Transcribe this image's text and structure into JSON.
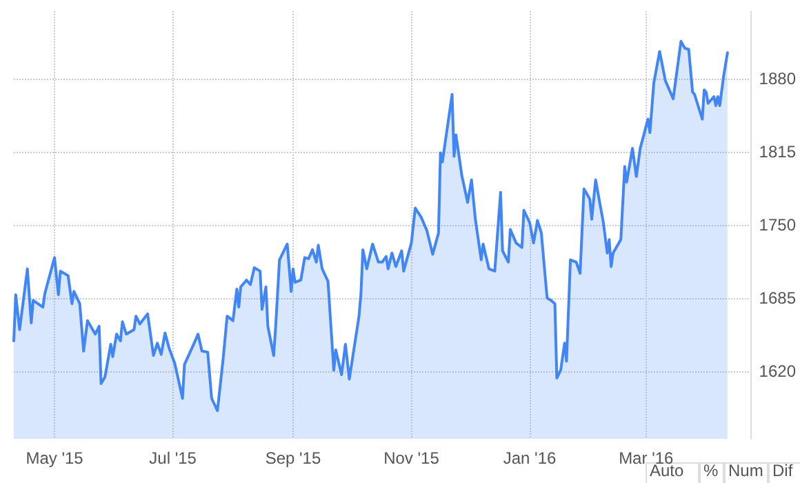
{
  "chart_data": {
    "type": "area",
    "x": [
      "2015-04-10",
      "2015-04-11",
      "2015-04-13",
      "2015-04-17",
      "2015-04-19",
      "2015-04-20",
      "2015-04-25",
      "2015-04-26",
      "2015-05-01",
      "2015-05-03",
      "2015-05-04",
      "2015-05-08",
      "2015-05-10",
      "2015-05-11",
      "2015-05-14",
      "2015-05-16",
      "2015-05-18",
      "2015-05-22",
      "2015-05-24",
      "2015-05-25",
      "2015-05-27",
      "2015-05-30",
      "2015-05-31",
      "2015-06-02",
      "2015-06-04",
      "2015-06-05",
      "2015-06-07",
      "2015-06-11",
      "2015-06-12",
      "2015-06-14",
      "2015-06-18",
      "2015-06-21",
      "2015-06-23",
      "2015-06-25",
      "2015-06-27",
      "2015-06-29",
      "2015-07-02",
      "2015-07-06",
      "2015-07-07",
      "2015-07-12",
      "2015-07-14",
      "2015-07-16",
      "2015-07-19",
      "2015-07-21",
      "2015-07-24",
      "2015-07-27",
      "2015-07-29",
      "2015-08-01",
      "2015-08-03",
      "2015-08-04",
      "2015-08-05",
      "2015-08-08",
      "2015-08-10",
      "2015-08-12",
      "2015-08-15",
      "2015-08-16",
      "2015-08-18",
      "2015-08-19",
      "2015-08-22",
      "2015-08-23",
      "2015-08-25",
      "2015-08-29",
      "2015-08-31",
      "2015-09-01",
      "2015-09-02",
      "2015-09-05",
      "2015-09-07",
      "2015-09-09",
      "2015-09-11",
      "2015-09-13",
      "2015-09-14",
      "2015-09-16",
      "2015-09-19",
      "2015-09-22",
      "2015-09-23",
      "2015-09-26",
      "2015-09-28",
      "2015-09-30",
      "2015-10-05",
      "2015-10-06",
      "2015-10-07",
      "2015-10-09",
      "2015-10-12",
      "2015-10-15",
      "2015-10-17",
      "2015-10-19",
      "2015-10-20",
      "2015-10-22",
      "2015-10-24",
      "2015-10-27",
      "2015-10-28",
      "2015-11-01",
      "2015-11-03",
      "2015-11-06",
      "2015-11-09",
      "2015-11-12",
      "2015-11-15",
      "2015-11-16",
      "2015-11-17",
      "2015-11-18",
      "2015-11-22",
      "2015-11-23",
      "2015-11-24",
      "2015-11-27",
      "2015-11-30",
      "2015-12-02",
      "2015-12-04",
      "2015-12-07",
      "2015-12-08",
      "2015-12-11",
      "2015-12-14",
      "2015-12-17",
      "2015-12-18",
      "2015-12-21",
      "2015-12-22",
      "2015-12-25",
      "2015-12-28",
      "2015-12-29",
      "2016-01-01",
      "2016-01-03",
      "2016-01-05",
      "2016-01-07",
      "2016-01-10",
      "2016-01-12",
      "2016-01-14",
      "2016-01-15",
      "2016-01-17",
      "2016-01-19",
      "2016-01-20",
      "2016-01-22",
      "2016-01-25",
      "2016-01-27",
      "2016-01-29",
      "2016-02-01",
      "2016-02-02",
      "2016-02-04",
      "2016-02-08",
      "2016-02-10",
      "2016-02-11",
      "2016-02-12",
      "2016-02-13",
      "2016-02-17",
      "2016-02-19",
      "2016-02-20",
      "2016-02-23",
      "2016-02-25",
      "2016-02-27",
      "2016-03-02",
      "2016-03-03",
      "2016-03-05",
      "2016-03-08",
      "2016-03-11",
      "2016-03-15",
      "2016-03-19",
      "2016-03-21",
      "2016-03-23",
      "2016-03-25",
      "2016-03-26",
      "2016-03-30",
      "2016-03-31",
      "2016-04-01",
      "2016-04-02",
      "2016-04-05",
      "2016-04-06",
      "2016-04-07",
      "2016-04-08",
      "2016-04-10",
      "2016-04-12"
    ],
    "series": [
      {
        "color": "#4285f4",
        "values": [
          1647,
          1688,
          1657,
          1711,
          1663,
          1683,
          1677,
          1689,
          1721,
          1688,
          1709,
          1705,
          1680,
          1691,
          1680,
          1638,
          1665,
          1653,
          1660,
          1609,
          1615,
          1644,
          1633,
          1653,
          1647,
          1664,
          1653,
          1657,
          1669,
          1662,
          1671,
          1634,
          1645,
          1635,
          1654,
          1641,
          1627,
          1596,
          1626,
          1645,
          1653,
          1638,
          1637,
          1596,
          1585,
          1632,
          1669,
          1665,
          1693,
          1677,
          1695,
          1701,
          1697,
          1712,
          1709,
          1675,
          1695,
          1660,
          1634,
          1659,
          1719,
          1733,
          1691,
          1711,
          1699,
          1701,
          1721,
          1720,
          1728,
          1717,
          1732,
          1711,
          1700,
          1621,
          1639,
          1617,
          1644,
          1613,
          1669,
          1689,
          1728,
          1711,
          1733,
          1717,
          1717,
          1722,
          1711,
          1725,
          1713,
          1727,
          1709,
          1734,
          1765,
          1757,
          1745,
          1724,
          1743,
          1814,
          1806,
          1818,
          1866,
          1811,
          1830,
          1794,
          1770,
          1790,
          1755,
          1719,
          1733,
          1711,
          1709,
          1779,
          1727,
          1717,
          1746,
          1734,
          1730,
          1763,
          1752,
          1734,
          1754,
          1743,
          1685,
          1683,
          1680,
          1614,
          1621,
          1645,
          1629,
          1719,
          1717,
          1707,
          1782,
          1773,
          1755,
          1790,
          1752,
          1725,
          1737,
          1713,
          1725,
          1737,
          1802,
          1788,
          1818,
          1793,
          1818,
          1844,
          1832,
          1876,
          1904,
          1878,
          1862,
          1913,
          1907,
          1906,
          1868,
          1866,
          1844,
          1870,
          1868,
          1858,
          1864,
          1856,
          1864,
          1856,
          1882,
          1903
        ]
      }
    ],
    "xlim": [
      "2015-04-10",
      "2016-04-24"
    ],
    "xticks": [
      {
        "value": "2015-05-01",
        "label": "May '15"
      },
      {
        "value": "2015-07-01",
        "label": "Jul '15"
      },
      {
        "value": "2015-09-01",
        "label": "Sep '15"
      },
      {
        "value": "2015-11-01",
        "label": "Nov '15"
      },
      {
        "value": "2016-01-01",
        "label": "Jan '16"
      },
      {
        "value": "2016-03-01",
        "label": "Mar '16"
      }
    ],
    "ylim": [
      1560,
      1940
    ],
    "yticks": [
      1620,
      1685,
      1750,
      1815,
      1880
    ],
    "grid": true,
    "marker": "none",
    "line_style": "solid",
    "annotations": [
      "Auto",
      "%",
      "Num",
      "Dif"
    ]
  }
}
